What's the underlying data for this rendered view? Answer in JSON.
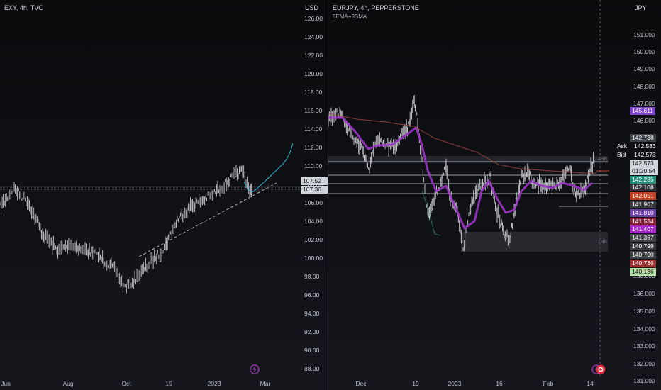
{
  "left_pane": {
    "title": "EXY, 4h, TVC",
    "currency": "USD",
    "price_axis": [
      "126.00",
      "124.00",
      "122.00",
      "120.00",
      "118.00",
      "116.00",
      "114.00",
      "112.00",
      "110.00",
      "108.00",
      "106.00",
      "104.00",
      "102.00",
      "100.00",
      "98.00",
      "96.00",
      "94.00",
      "92.00",
      "90.00",
      "88.00"
    ],
    "time_axis": [
      "Jun",
      "Aug",
      "Oct",
      "15",
      "2023",
      "Mar"
    ],
    "price_tags": [
      {
        "label": "107.52",
        "bg": "#cfd2d8",
        "fg": "#111111"
      },
      {
        "label": "107.36",
        "bg": "#cfd2d8",
        "fg": "#111111"
      }
    ],
    "projection_color": "#2bb7d6",
    "icon": "lightning-icon"
  },
  "right_pane": {
    "title": "EURJPY, 4h, PEPPERSTONE",
    "indicator": "5EMA+3SMA",
    "currency": "JPY",
    "price_axis": [
      "151.000",
      "150.000",
      "149.000",
      "148.000",
      "147.000",
      "146.000",
      "136.000",
      "135.000",
      "134.000",
      "133.000",
      "132.000",
      "131.000"
    ],
    "partial_axis_label": "138.000",
    "time_axis": [
      "Dec",
      "19",
      "2023",
      "16",
      "Feb",
      "14"
    ],
    "zone_labels": [
      "4HR",
      "1HR"
    ],
    "ask_label": "Ask",
    "ask_value": "142.583",
    "bid_label": "Bid",
    "bid_value": "142.573",
    "current_price": "142.573",
    "countdown": "01:20:54",
    "price_tags": [
      {
        "label": "145.611",
        "bg": "#7e43c9",
        "fg": "#ffffff"
      },
      {
        "label": "142.738",
        "bg": "#3f4148",
        "fg": "#ffffff"
      },
      {
        "label": "142.285",
        "bg": "#1f8f79",
        "fg": "#ffffff"
      },
      {
        "label": "142.108",
        "bg": "#35363c",
        "fg": "#ffffff"
      },
      {
        "label": "142.051",
        "bg": "#c2401b",
        "fg": "#ffffff"
      },
      {
        "label": "141.907",
        "bg": "#3a3b42",
        "fg": "#ffffff"
      },
      {
        "label": "141.810",
        "bg": "#6b3fa6",
        "fg": "#ffffff"
      },
      {
        "label": "141.534",
        "bg": "#8a1f3c",
        "fg": "#ffffff"
      },
      {
        "label": "141.407",
        "bg": "#a72ac9",
        "fg": "#ffffff"
      },
      {
        "label": "141.367",
        "bg": "#3e3f45",
        "fg": "#ffffff"
      },
      {
        "label": "140.799",
        "bg": "#3b3c42",
        "fg": "#ffffff"
      },
      {
        "label": "140.790",
        "bg": "#3b3c42",
        "fg": "#ffffff"
      },
      {
        "label": "140.736",
        "bg": "#9a3030",
        "fg": "#ffffff"
      },
      {
        "label": "140.136",
        "bg": "#b7e3a8",
        "fg": "#111111"
      }
    ],
    "ema_color": "#9b34c5",
    "sma_color": "#b04a4a",
    "icons": [
      "lightning-icon",
      "alert-icon"
    ]
  }
}
